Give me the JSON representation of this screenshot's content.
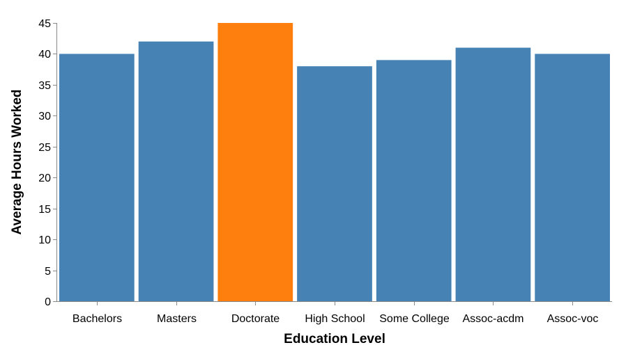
{
  "chart_data": {
    "type": "bar",
    "categories": [
      "Bachelors",
      "Masters",
      "Doctorate",
      "High School",
      "Some College",
      "Assoc-acdm",
      "Assoc-voc"
    ],
    "values": [
      40,
      42,
      45,
      38,
      39,
      41,
      40
    ],
    "highlight_index": 2,
    "xlabel": "Education Level",
    "ylabel": "Average Hours Worked",
    "ylim": [
      0,
      45
    ],
    "yticks": [
      0,
      5,
      10,
      15,
      20,
      25,
      30,
      35,
      40,
      45
    ],
    "grid": false,
    "colors": {
      "bar": "#4682b4",
      "highlight": "#ff7f0e",
      "axis": "#888888"
    }
  }
}
